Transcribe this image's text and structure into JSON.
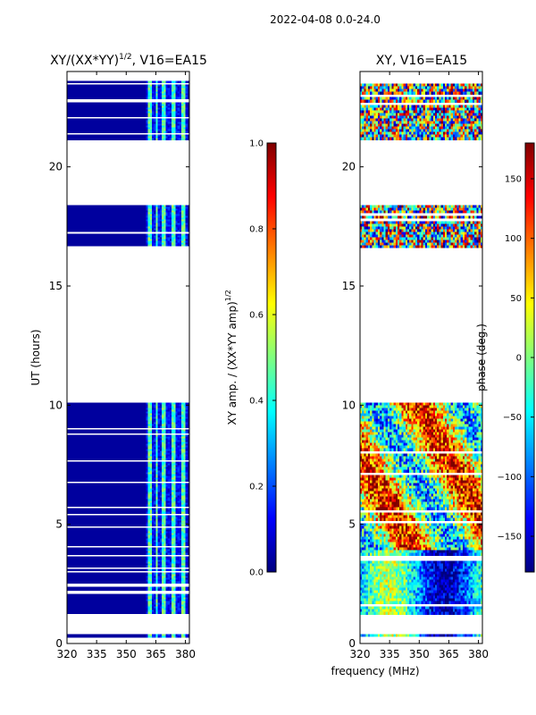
{
  "figure_title": "2022-04-08 0.0-24.0",
  "shared_xlabel": "frequency (MHz)",
  "colors": {
    "masked_background": "#ffffff",
    "amp_low": "#00007f",
    "jet_stops": [
      "#00007f",
      "#0000ff",
      "#007fff",
      "#00ffff",
      "#7fff7f",
      "#ffff00",
      "#ff7f00",
      "#ff0000",
      "#7f0000"
    ]
  },
  "chart_data": [
    {
      "type": "heatmap",
      "title_main": "XY/(XX*YY)",
      "title_exp": "1/2",
      "title_suffix": ", V16=EA15",
      "xlabel": "",
      "ylabel": "UT (hours)",
      "xlim": [
        320,
        382
      ],
      "ylim": [
        0,
        24
      ],
      "xticks": [
        320,
        335,
        350,
        365,
        380
      ],
      "yticks": [
        0,
        5,
        10,
        15,
        20
      ],
      "x_ticklabels": [
        "320",
        "335",
        "350",
        "365",
        "380"
      ],
      "y_ticklabels": [
        "0",
        "5",
        "10",
        "15",
        "20"
      ],
      "colorbar": {
        "label_main": "XY amp. / (XX*YY amp)",
        "label_exp": "1/2",
        "range": [
          0.0,
          1.0
        ],
        "ticks": [
          0.0,
          0.2,
          0.4,
          0.6,
          0.8,
          1.0
        ],
        "ticklabels": [
          "0.0",
          "0.2",
          "0.4",
          "0.6",
          "0.8",
          "1.0"
        ]
      },
      "valid_time_blocks_hours": [
        [
          0.3,
          0.4
        ],
        [
          1.3,
          10.1
        ],
        [
          16.7,
          18.4
        ],
        [
          21.2,
          23.6
        ]
      ],
      "high_amplitude_channels_mhz": [
        [
          361,
          363
        ],
        [
          364.5,
          366
        ],
        [
          368,
          370
        ],
        [
          373,
          375
        ],
        [
          378,
          380
        ]
      ],
      "background_value": 0.03
    },
    {
      "type": "heatmap",
      "title_main": "XY, V16=EA15",
      "xlabel": "",
      "ylabel": "",
      "xlim": [
        320,
        382
      ],
      "ylim": [
        0,
        24
      ],
      "xticks": [
        320,
        335,
        350,
        365,
        380
      ],
      "yticks": [
        0,
        5,
        10,
        15,
        20
      ],
      "x_ticklabels": [
        "320",
        "335",
        "350",
        "365",
        "380"
      ],
      "y_ticklabels": [
        "0",
        "5",
        "10",
        "15",
        "20"
      ],
      "colorbar": {
        "label_main": "phase (deg.)",
        "range": [
          -180,
          180
        ],
        "ticks": [
          -150,
          -100,
          -50,
          0,
          50,
          100,
          150
        ],
        "ticklabels": [
          "−150",
          "−100",
          "−50",
          "0",
          "50",
          "100",
          "150"
        ]
      },
      "valid_time_blocks_hours": [
        [
          0.3,
          0.4
        ],
        [
          1.3,
          10.1
        ],
        [
          16.7,
          18.4
        ],
        [
          21.2,
          23.6
        ]
      ]
    }
  ]
}
